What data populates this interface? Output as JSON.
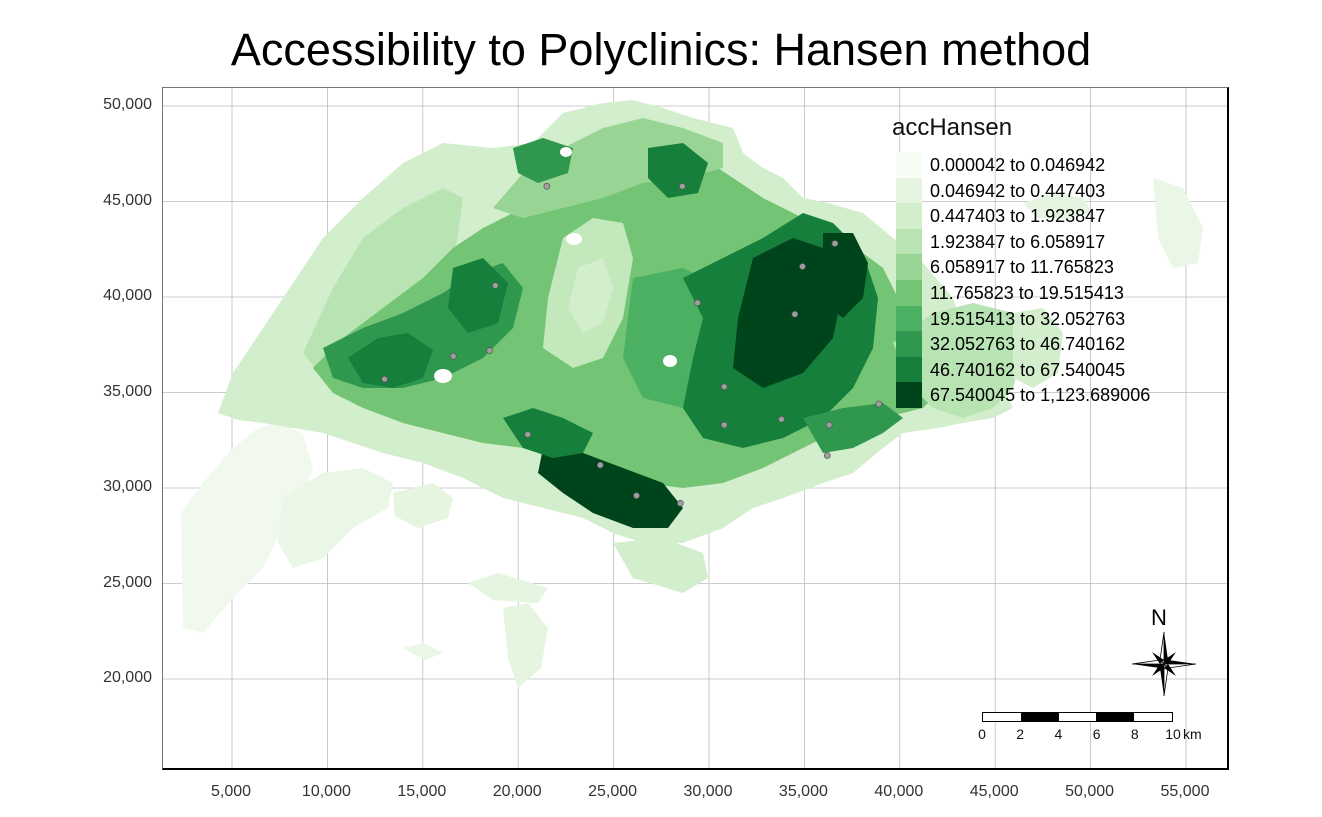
{
  "title": "Accessibility to Polyclinics: Hansen method",
  "axes": {
    "x": {
      "tick_values": [
        5000,
        10000,
        15000,
        20000,
        25000,
        30000,
        35000,
        40000,
        45000,
        50000,
        55000
      ],
      "tick_labels": [
        "5,000",
        "10,000",
        "15,000",
        "20,000",
        "25,000",
        "30,000",
        "35,000",
        "40,000",
        "45,000",
        "50,000",
        "55,000"
      ]
    },
    "y": {
      "tick_values": [
        50000,
        45000,
        40000,
        35000,
        30000,
        25000,
        20000
      ],
      "tick_labels": [
        "50,000",
        "45,000",
        "40,000",
        "35,000",
        "30,000",
        "25,000",
        "20,000"
      ]
    }
  },
  "legend": {
    "title": "accHansen",
    "classes": [
      {
        "label": "0.000042 to 0.046942",
        "color": "#f7fcf5"
      },
      {
        "label": "0.046942 to 0.447403",
        "color": "#e5f5e0"
      },
      {
        "label": "0.447403 to 1.923847",
        "color": "#d3eecd"
      },
      {
        "label": "1.923847 to 6.058917",
        "color": "#b8e3b2"
      },
      {
        "label": "6.058917 to 11.765823",
        "color": "#98d594"
      },
      {
        "label": "11.765823 to 19.515413",
        "color": "#74c476"
      },
      {
        "label": "19.515413 to 32.052763",
        "color": "#4bb062"
      },
      {
        "label": "32.052763 to 46.740162",
        "color": "#2f974e"
      },
      {
        "label": "46.740162 to 67.540045",
        "color": "#157f3b"
      },
      {
        "label": "67.540045 to 1,123.689006",
        "color": "#00441b"
      }
    ]
  },
  "north_arrow": {
    "label": "N"
  },
  "scale_bar": {
    "tick_labels": [
      "0",
      "2",
      "4",
      "6",
      "8",
      "10"
    ],
    "unit": "km"
  },
  "map_data": {
    "polyclinic_locations": [
      {
        "x": 13000,
        "y": 35700
      },
      {
        "x": 16600,
        "y": 36900
      },
      {
        "x": 18500,
        "y": 37200
      },
      {
        "x": 18800,
        "y": 40600
      },
      {
        "x": 21500,
        "y": 45800
      },
      {
        "x": 28600,
        "y": 45800
      },
      {
        "x": 29400,
        "y": 39700
      },
      {
        "x": 34500,
        "y": 39100
      },
      {
        "x": 34900,
        "y": 41600
      },
      {
        "x": 36600,
        "y": 42800
      },
      {
        "x": 30800,
        "y": 35300
      },
      {
        "x": 30800,
        "y": 33300
      },
      {
        "x": 33800,
        "y": 33600
      },
      {
        "x": 36300,
        "y": 33300
      },
      {
        "x": 38900,
        "y": 34400
      },
      {
        "x": 36200,
        "y": 31700
      },
      {
        "x": 20500,
        "y": 32800
      },
      {
        "x": 24300,
        "y": 31200
      },
      {
        "x": 26200,
        "y": 29600
      },
      {
        "x": 28500,
        "y": 29200
      }
    ]
  }
}
